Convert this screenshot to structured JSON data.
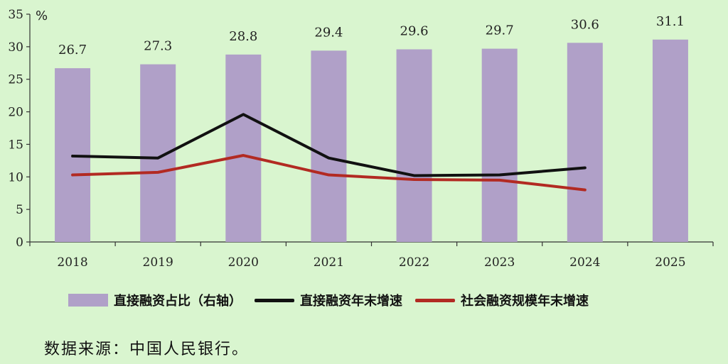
{
  "chart_data": {
    "type": "bar+line",
    "unit_label": "%",
    "categories": [
      "2018",
      "2019",
      "2020",
      "2021",
      "2022",
      "2023",
      "2024",
      "2025"
    ],
    "ylim": [
      0,
      35
    ],
    "yticks": [
      "0",
      "5",
      "10",
      "15",
      "20",
      "25",
      "30",
      "35"
    ],
    "grid": false,
    "legend_position": "bottom",
    "bars": {
      "name": "直接融资占比（右轴）",
      "color": "#b0a0c8",
      "values": [
        26.7,
        27.3,
        28.8,
        29.4,
        29.6,
        29.7,
        30.6,
        31.1
      ],
      "labels": [
        "26.7",
        "27.3",
        "28.8",
        "29.4",
        "29.6",
        "29.7",
        "30.6",
        "31.1"
      ]
    },
    "lines": [
      {
        "name": "直接融资年末增速",
        "color": "#111111",
        "values": [
          13.2,
          12.9,
          19.6,
          12.9,
          10.2,
          10.3,
          11.4,
          null
        ]
      },
      {
        "name": "社会融资规模年末增速",
        "color": "#b22a22",
        "values": [
          10.3,
          10.7,
          13.3,
          10.3,
          9.6,
          9.5,
          8.0,
          null
        ]
      }
    ]
  },
  "source_note": "数据来源：中国人民银行。"
}
